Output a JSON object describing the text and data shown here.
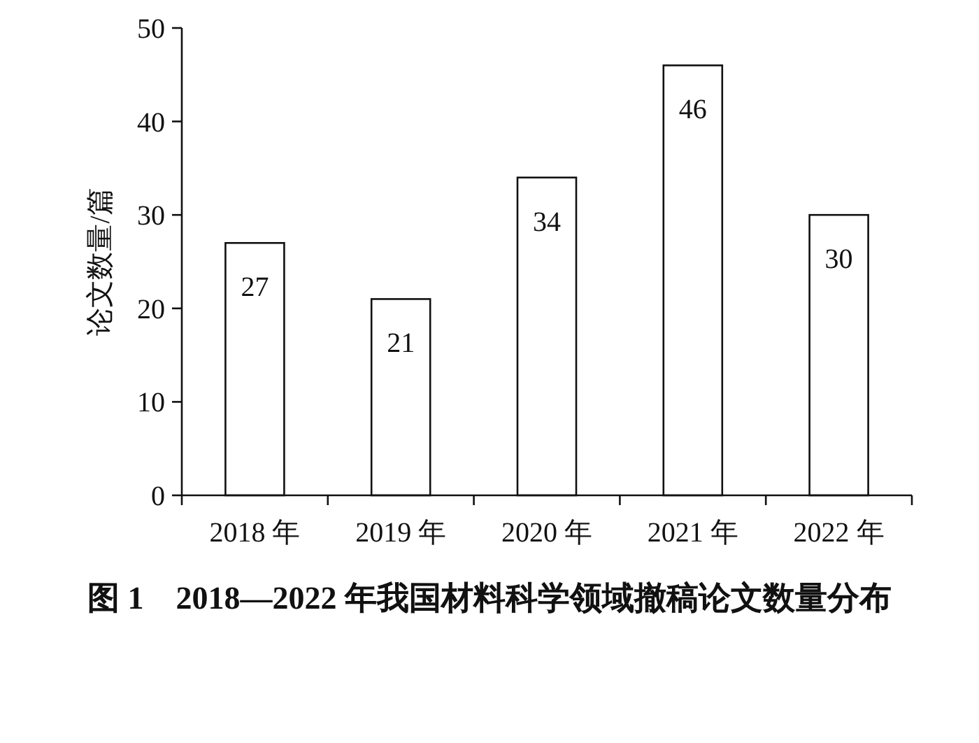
{
  "chart_data": {
    "type": "bar",
    "title": "图 1　2018—2022 年我国材料科学领域撤稿论文数量分布",
    "ylabel": "论文数量/篇",
    "categories": [
      "2018 年",
      "2019 年",
      "2020 年",
      "2021 年",
      "2022 年"
    ],
    "values": [
      27,
      21,
      34,
      46,
      30
    ],
    "color": "#ffffff",
    "ylim": [
      0,
      50
    ],
    "yticks": [
      0,
      10,
      20,
      30,
      40,
      50
    ],
    "data_labels": true
  }
}
